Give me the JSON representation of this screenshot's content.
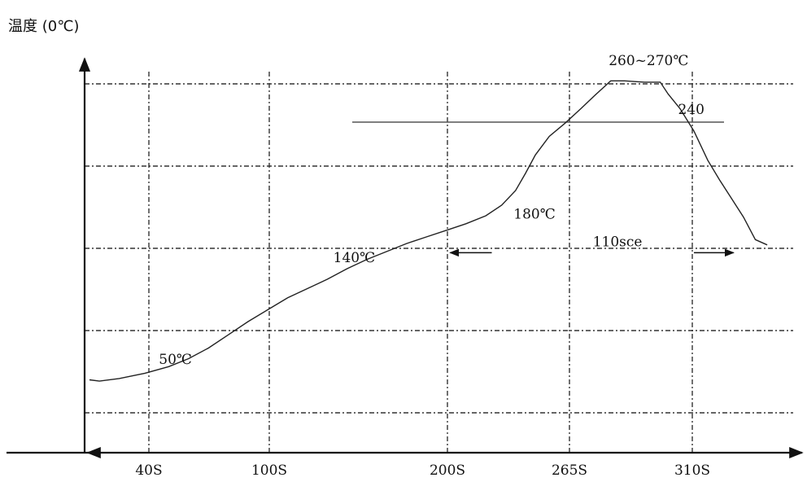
{
  "chart_data": {
    "type": "line",
    "ylabel": "温度 (0℃)",
    "xlabel": "",
    "x_ticks": [
      "40S",
      "100S",
      "200S",
      "265S",
      "310S"
    ],
    "series": [
      {
        "values": [
          [
            0,
            44
          ],
          [
            5,
            43
          ],
          [
            15,
            45
          ],
          [
            28,
            49
          ],
          [
            40,
            54
          ],
          [
            50,
            60
          ],
          [
            60,
            68
          ],
          [
            70,
            78
          ],
          [
            80,
            88
          ],
          [
            90,
            97
          ],
          [
            100,
            106
          ],
          [
            110,
            113
          ],
          [
            120,
            120
          ],
          [
            130,
            128
          ],
          [
            140,
            135
          ],
          [
            150,
            141
          ],
          [
            160,
            147
          ],
          [
            170,
            152
          ],
          [
            180,
            157
          ],
          [
            190,
            162
          ],
          [
            200,
            168
          ],
          [
            208,
            176
          ],
          [
            215,
            187
          ],
          [
            220,
            200
          ],
          [
            225,
            214
          ],
          [
            232,
            228
          ],
          [
            240,
            238
          ],
          [
            248,
            249
          ],
          [
            255,
            259
          ],
          [
            263,
            270
          ],
          [
            270,
            270
          ],
          [
            280,
            269
          ],
          [
            288,
            269
          ],
          [
            292,
            260
          ],
          [
            298,
            249
          ],
          [
            305,
            232
          ],
          [
            312,
            210
          ],
          [
            318,
            195
          ],
          [
            324,
            181
          ],
          [
            330,
            167
          ],
          [
            336,
            150
          ],
          [
            342,
            146
          ]
        ]
      }
    ],
    "reference_line": {
      "value": 240,
      "label": "240"
    },
    "annotations": [
      {
        "text": "50℃",
        "x": 35,
        "y": 56
      },
      {
        "text": "140℃",
        "x": 123,
        "y": 133
      },
      {
        "text": "180℃",
        "x": 214,
        "y": 166
      },
      {
        "text": "260~270℃",
        "x": 262,
        "y": 282
      },
      {
        "text": "240",
        "x": 297,
        "y": 245
      },
      {
        "text": "110sce",
        "x": 254,
        "y": 145
      }
    ],
    "span_arrow": {
      "from": 200,
      "to": 310,
      "left_arrow_x": [
        182,
        203
      ],
      "right_arrow_x": [
        305,
        325
      ],
      "y": 145
    },
    "grid": true,
    "grid_style": "dash-dot"
  }
}
